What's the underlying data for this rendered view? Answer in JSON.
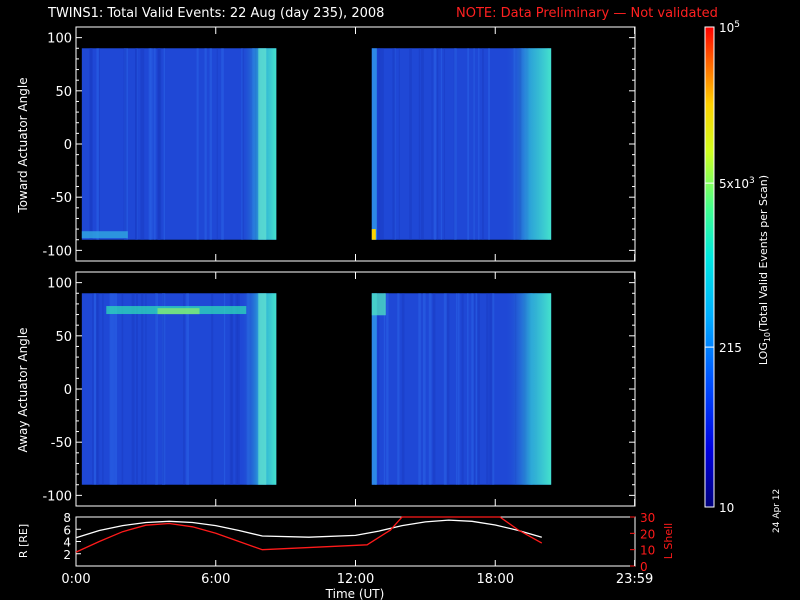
{
  "page": {
    "title_main": "TWINS1: Total Valid Events: 22 Aug (day 235), 2008",
    "title_note": "NOTE: Data Preliminary — Not validated",
    "stamp": "24 Apr 12"
  },
  "colors": {
    "background": "#000000",
    "axes": "#ffffff",
    "note": "#ff2020",
    "lshell": "#ff1a1a",
    "radius": "#ffffff",
    "spectrogram_base": "#1f48d6"
  },
  "chart_data": [
    {
      "type": "heatmap",
      "name": "toward",
      "ylabel": "Toward Actuator Angle",
      "ylim": [
        -110,
        110
      ],
      "yticks": [
        100,
        50,
        0,
        -50,
        -100
      ],
      "ytick_labels": [
        "100",
        "50",
        "0",
        "-50",
        "-100"
      ],
      "xlim_hours": [
        0,
        24
      ],
      "data_extent_angle": [
        -90,
        90
      ],
      "blocks_hours": [
        [
          0.25,
          8.6
        ],
        [
          12.7,
          20.4
        ]
      ]
    },
    {
      "type": "heatmap",
      "name": "away",
      "ylabel": "Away Actuator Angle",
      "ylim": [
        -110,
        110
      ],
      "yticks": [
        100,
        50,
        0,
        -50,
        -100
      ],
      "ytick_labels": [
        "100",
        "50",
        "0",
        "-50",
        "-100"
      ],
      "xlim_hours": [
        0,
        24
      ],
      "data_extent_angle": [
        -90,
        90
      ],
      "blocks_hours": [
        [
          0.25,
          8.6
        ],
        [
          12.7,
          20.4
        ]
      ]
    },
    {
      "type": "line",
      "name": "orbit",
      "ylabel_left": "R [RE]",
      "ylabel_right": "L Shell",
      "xlabel": "Time (UT)",
      "xticks_hours": [
        0,
        6,
        12,
        18,
        23.983
      ],
      "xtick_labels": [
        "0:00",
        "6:00",
        "12:00",
        "18:00",
        "23:59"
      ],
      "left_ylim": [
        0,
        8
      ],
      "left_yticks": [
        2,
        4,
        6,
        8
      ],
      "right_ylim": [
        0,
        30
      ],
      "right_yticks": [
        0,
        10,
        20,
        30
      ],
      "series": [
        {
          "axis": "left",
          "x": [
            0,
            1,
            2,
            3,
            4,
            5,
            6,
            7,
            8,
            10,
            12,
            13,
            14,
            15,
            16,
            17,
            18,
            19,
            20
          ],
          "y": [
            4.6,
            5.8,
            6.6,
            7.1,
            7.3,
            7.1,
            6.6,
            5.8,
            4.9,
            4.7,
            5.0,
            5.7,
            6.6,
            7.2,
            7.5,
            7.3,
            6.7,
            5.8,
            4.7
          ]
        },
        {
          "axis": "right",
          "x": [
            0,
            1,
            2,
            3,
            4,
            5,
            6,
            7,
            8,
            12.5,
            13.5,
            14,
            18.2,
            19,
            20
          ],
          "y": [
            8.5,
            15,
            21,
            25,
            26,
            24,
            20,
            15,
            10,
            13,
            22,
            31,
            31,
            22,
            14
          ]
        }
      ]
    },
    {
      "type": "heatmap",
      "name": "colorbar",
      "ylabel": "LOG10(Total Valid Events per Scan)",
      "ylabel_text": "LOG",
      "ylabel_sub": "10",
      "ylabel_rest": "(Total Valid Events per Scan)",
      "scale": "log",
      "range": [
        10,
        100000
      ],
      "ticks": [
        {
          "value": 100000,
          "label_base": "10",
          "label_sup": "5"
        },
        {
          "value": 5000,
          "label_base": "5x10",
          "label_sup": "3"
        },
        {
          "value": 215,
          "label_base": "215",
          "label_sup": ""
        },
        {
          "value": 10,
          "label_base": "10",
          "label_sup": ""
        }
      ]
    }
  ]
}
